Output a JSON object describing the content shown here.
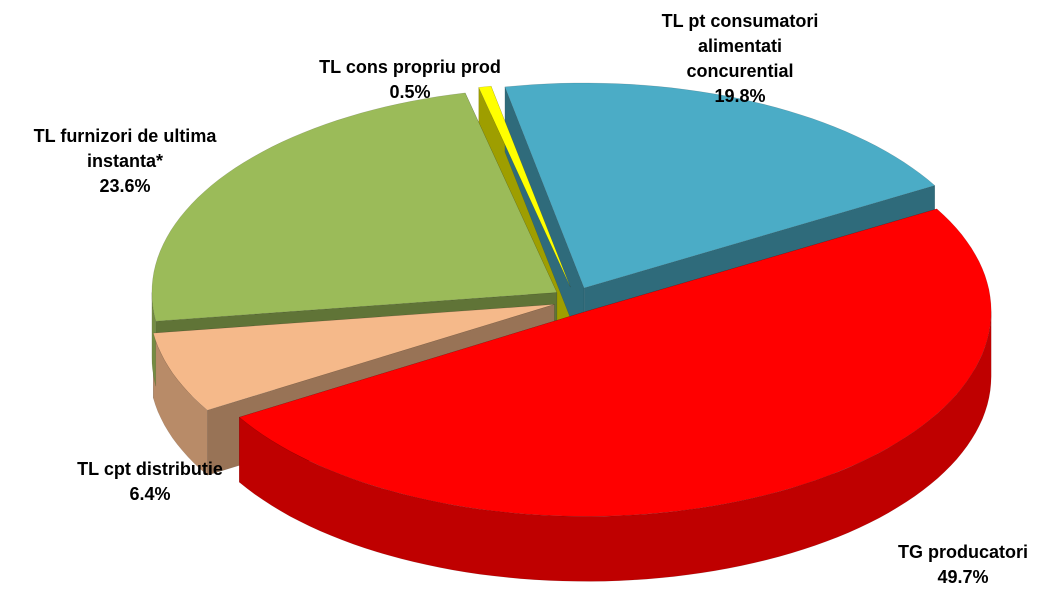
{
  "chart_data": {
    "type": "pie3d",
    "categories": [
      "TG producatori",
      "TL cpt distributie",
      "TL furnizori de ultima instanta*",
      "TL cons propriu prod",
      "TL pt consumatori alimentati concurential"
    ],
    "values": [
      49.7,
      6.4,
      23.6,
      0.5,
      19.8
    ],
    "value_labels": [
      "49.7%",
      "6.4%",
      "23.6%",
      "0.5%",
      "19.8%"
    ],
    "colors": [
      "#ff0000",
      "#f5b98a",
      "#9bbb59",
      "#ffff00",
      "#4bacc6"
    ]
  }
}
